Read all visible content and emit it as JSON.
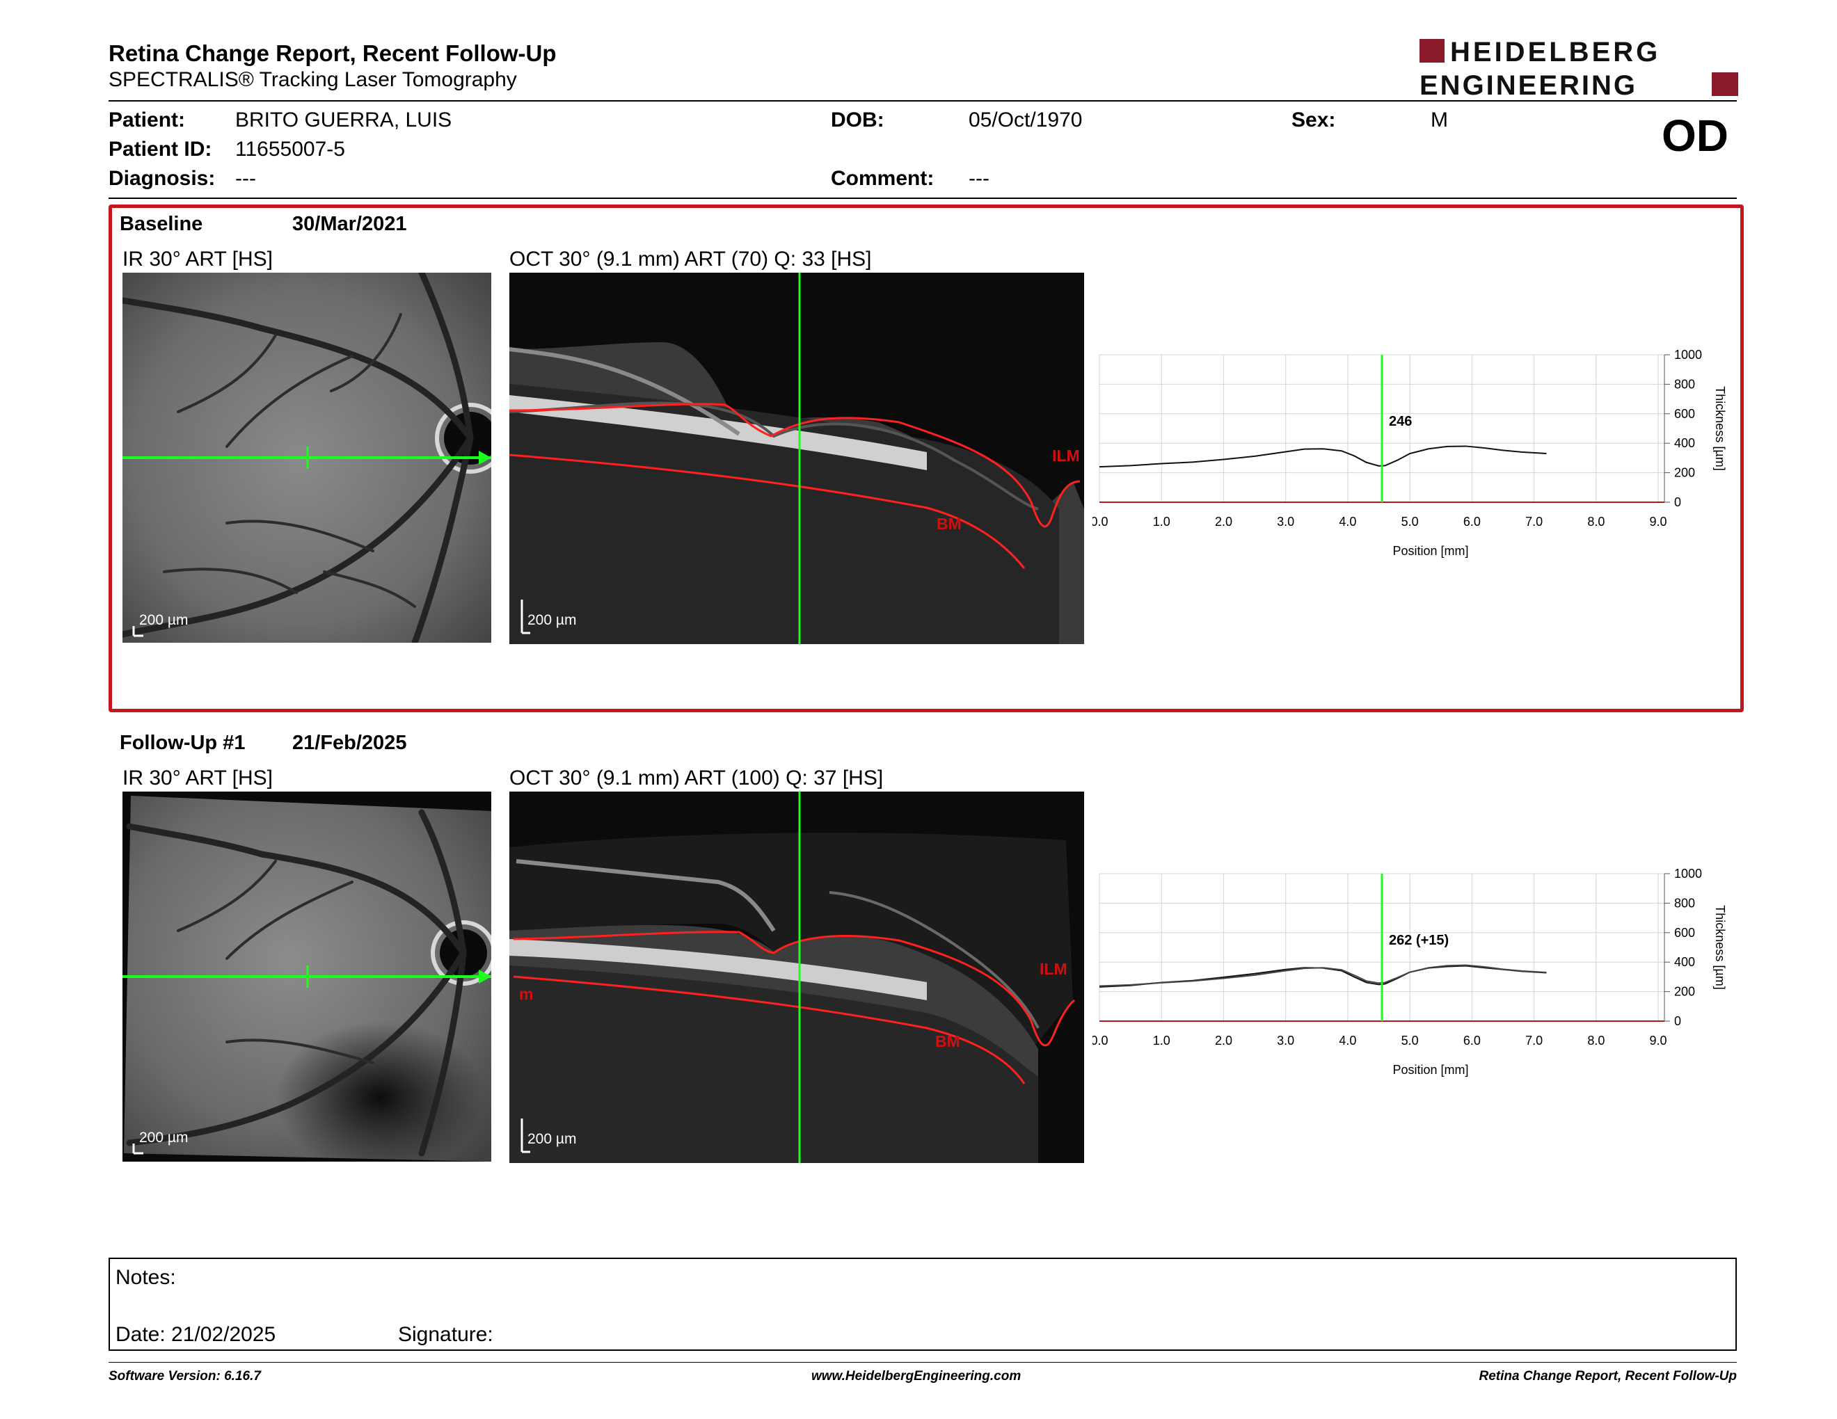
{
  "header": {
    "title": "Retina Change Report, Recent Follow-Up",
    "subtitle": "SPECTRALIS® Tracking Laser Tomography",
    "logo_line1": "HEIDELBERG",
    "logo_line2": "ENGINEERING",
    "brand_color": "#8b1a2b"
  },
  "patient": {
    "patient_label": "Patient:",
    "patient_value": "BRITO GUERRA, LUIS",
    "id_label": "Patient ID:",
    "id_value": "11655007-5",
    "diagnosis_label": "Diagnosis:",
    "diagnosis_value": "---",
    "dob_label": "DOB:",
    "dob_value": "05/Oct/1970",
    "comment_label": "Comment:",
    "comment_value": "---",
    "sex_label": "Sex:",
    "sex_value": "M",
    "eye": "OD"
  },
  "baseline": {
    "label": "Baseline",
    "date": "30/Mar/2021",
    "ir_caption": "IR 30° ART [HS]",
    "oct_caption": "OCT 30° (9.1 mm) ART (70) Q: 33 [HS]",
    "ir_scale": "200 µm",
    "oct_scale": "200 µm",
    "ilm_label": "ILM",
    "bm_label": "BM"
  },
  "followup": {
    "label": "Follow-Up #1",
    "date": "21/Feb/2025",
    "ir_caption": "IR 30° ART [HS]",
    "oct_caption": "OCT 30° (9.1 mm) ART (100) Q: 37 [HS]",
    "ir_scale": "200 µm",
    "oct_scale": "200 µm",
    "ilm_label": "ILM",
    "bm_label": "BM",
    "m_label": "m"
  },
  "chart_data": [
    {
      "type": "line",
      "xlabel": "Position [mm]",
      "ylabel": "Thickness [µm]",
      "xlim": [
        0,
        9.1
      ],
      "ylim": [
        0,
        1000
      ],
      "x_ticks": [
        "0.0",
        "1.0",
        "2.0",
        "3.0",
        "4.0",
        "5.0",
        "6.0",
        "7.0",
        "8.0",
        "9.0"
      ],
      "y_ticks": [
        "0",
        "200",
        "400",
        "600",
        "800",
        "1000"
      ],
      "cursor_x": 4.55,
      "cursor_label": "246",
      "series": [
        {
          "x": [
            0.0,
            0.5,
            1.0,
            1.5,
            2.0,
            2.5,
            3.0,
            3.3,
            3.6,
            3.9,
            4.1,
            4.3,
            4.5,
            4.6,
            4.8,
            5.0,
            5.3,
            5.6,
            5.9,
            6.2,
            6.5,
            6.8,
            7.2
          ],
          "y": [
            240,
            248,
            262,
            272,
            290,
            312,
            342,
            360,
            362,
            348,
            315,
            270,
            246,
            248,
            285,
            330,
            362,
            378,
            380,
            368,
            352,
            340,
            330
          ]
        }
      ]
    },
    {
      "type": "line",
      "xlabel": "Position [mm]",
      "ylabel": "Thickness [µm]",
      "xlim": [
        0,
        9.1
      ],
      "ylim": [
        0,
        1000
      ],
      "x_ticks": [
        "0.0",
        "1.0",
        "2.0",
        "3.0",
        "4.0",
        "5.0",
        "6.0",
        "7.0",
        "8.0",
        "9.0"
      ],
      "y_ticks": [
        "0",
        "200",
        "400",
        "600",
        "800",
        "1000"
      ],
      "cursor_x": 4.55,
      "cursor_label": "262 (+15)",
      "series": [
        {
          "x": [
            0.0,
            0.5,
            1.0,
            1.5,
            2.0,
            2.5,
            3.0,
            3.3,
            3.6,
            3.9,
            4.1,
            4.3,
            4.5,
            4.6,
            4.8,
            5.0,
            5.3,
            5.6,
            5.9,
            6.2,
            6.5,
            6.8,
            7.2
          ],
          "y": [
            232,
            242,
            262,
            275,
            298,
            322,
            350,
            362,
            360,
            342,
            300,
            262,
            248,
            252,
            290,
            332,
            360,
            370,
            375,
            362,
            350,
            338,
            328
          ]
        },
        {
          "x": [
            0.0,
            0.5,
            1.0,
            1.5,
            2.0,
            2.5,
            3.0,
            3.3,
            3.6,
            3.9,
            4.1,
            4.3,
            4.5,
            4.6,
            4.8,
            5.0,
            5.3,
            5.6,
            5.9,
            6.2,
            6.5,
            6.8,
            7.2
          ],
          "y": [
            238,
            246,
            260,
            272,
            290,
            312,
            342,
            358,
            362,
            348,
            312,
            272,
            258,
            262,
            295,
            332,
            362,
            376,
            380,
            368,
            352,
            340,
            330
          ]
        }
      ]
    }
  ],
  "notes": {
    "notes_label": "Notes:",
    "date_label": "Date: 21/02/2025",
    "signature_label": "Signature:"
  },
  "footer": {
    "left": "Software Version: 6.16.7",
    "center": "www.HeidelbergEngineering.com",
    "right": "Retina Change Report, Recent Follow-Up"
  }
}
